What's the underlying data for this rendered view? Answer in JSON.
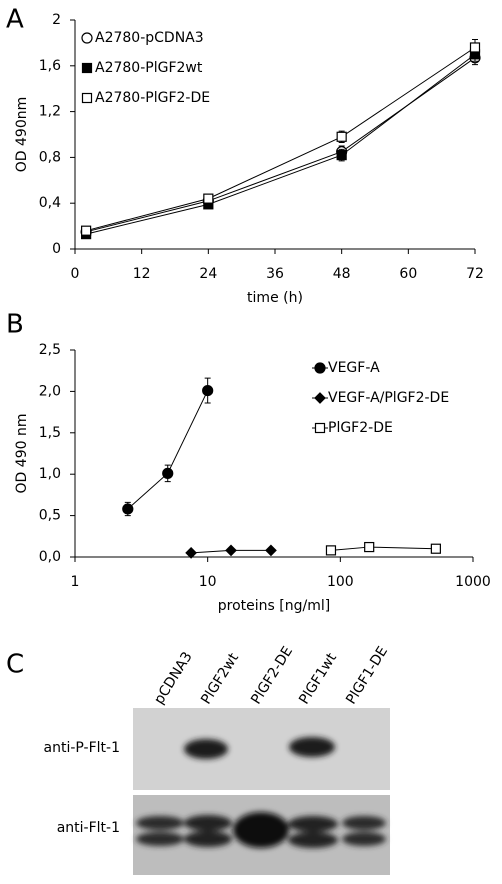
{
  "chart_data": [
    {
      "type": "line",
      "panel_label": "A",
      "xlabel": "time (h)",
      "ylabel": "OD 490nm",
      "x": [
        2,
        24,
        48,
        72
      ],
      "xlim": [
        0,
        72
      ],
      "xticks": [
        0,
        12,
        24,
        36,
        48,
        60,
        72
      ],
      "ylim": [
        0,
        2
      ],
      "yticks": [
        0,
        {
          "value": 0.4,
          "label": "0,4"
        },
        {
          "value": 0.8,
          "label": "0,8"
        },
        {
          "value": 1.2,
          "label": "1,2"
        },
        {
          "value": 1.6,
          "label": "1,6"
        },
        2
      ],
      "legend": "upper left",
      "series": [
        {
          "name": "A2780-pCDNA3",
          "color": "#000000",
          "marker": "circle-open",
          "values": [
            0.15,
            0.42,
            0.85,
            1.67
          ],
          "errors": [
            0.02,
            0.03,
            0.05,
            0.06
          ]
        },
        {
          "name": "A2780-PlGF2wt",
          "color": "#000000",
          "marker": "square-filled",
          "values": [
            0.13,
            0.39,
            0.82,
            1.7
          ],
          "errors": [
            0.02,
            0.02,
            0.05,
            0.06
          ]
        },
        {
          "name": "A2780-PlGF2-DE",
          "color": "#000000",
          "marker": "square-open",
          "values": [
            0.16,
            0.44,
            0.98,
            1.76
          ],
          "errors": [
            0.02,
            0.03,
            0.05,
            0.07
          ]
        }
      ]
    },
    {
      "type": "line",
      "panel_label": "B",
      "xlabel": "proteins [ng/ml]",
      "ylabel": "OD 490 nm",
      "xscale": "log",
      "xlim": [
        1,
        1000
      ],
      "xticks": [
        1,
        10,
        100,
        1000
      ],
      "ylim": [
        0,
        2.5
      ],
      "yticks": [
        {
          "value": 0,
          "label": "0,0"
        },
        {
          "value": 0.5,
          "label": "0,5"
        },
        {
          "value": 1,
          "label": "1,0"
        },
        {
          "value": 1.5,
          "label": "1,5"
        },
        {
          "value": 2,
          "label": "2,0"
        },
        {
          "value": 2.5,
          "label": "2,5"
        }
      ],
      "legend": "upper right",
      "series": [
        {
          "name": "VEGF-A",
          "color": "#000000",
          "marker": "circle-filled",
          "x": [
            2.5,
            5,
            10
          ],
          "values": [
            0.58,
            1.01,
            2.01
          ],
          "errors": [
            0.08,
            0.1,
            0.15
          ]
        },
        {
          "name": "VEGF-A/PlGF2-DE",
          "color": "#000000",
          "marker": "diamond-filled",
          "x": [
            7.5,
            15,
            30
          ],
          "values": [
            0.05,
            0.08,
            0.08
          ]
        },
        {
          "name": "PlGF2-DE",
          "color": "#000000",
          "marker": "square-open",
          "x": [
            85,
            165,
            525
          ],
          "values": [
            0.08,
            0.12,
            0.1
          ]
        }
      ]
    }
  ],
  "blot": {
    "panel_label": "C",
    "lanes": [
      "pCDNA3",
      "PlGF2wt",
      "PlGF2-DE",
      "PlGF1wt",
      "PlGF1-DE"
    ],
    "rows": [
      "anti-P-Flt-1",
      "anti-Flt-1"
    ]
  }
}
